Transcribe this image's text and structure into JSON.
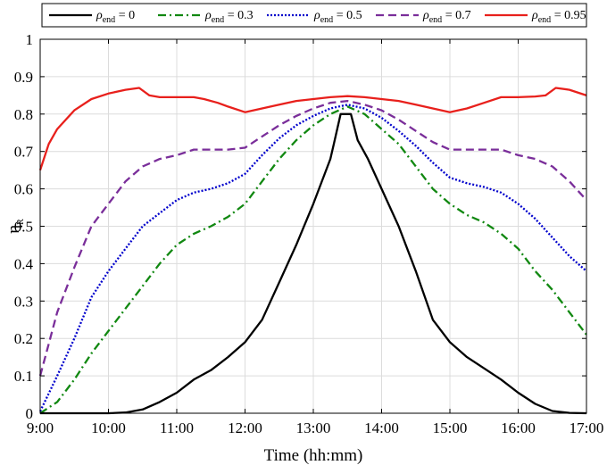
{
  "chart_data": {
    "type": "line",
    "xlabel": "Time (hh:mm)",
    "ylabel": "η",
    "ylabel_sub": "R",
    "xlim": [
      9,
      17
    ],
    "ylim": [
      0,
      1
    ],
    "x_ticks": [
      {
        "value": 9,
        "label": "9:00"
      },
      {
        "value": 10,
        "label": "10:00"
      },
      {
        "value": 11,
        "label": "11:00"
      },
      {
        "value": 12,
        "label": "12:00"
      },
      {
        "value": 13,
        "label": "13:00"
      },
      {
        "value": 14,
        "label": "14:00"
      },
      {
        "value": 15,
        "label": "15:00"
      },
      {
        "value": 16,
        "label": "16:00"
      },
      {
        "value": 17,
        "label": "17:00"
      }
    ],
    "y_ticks": [
      {
        "value": 0,
        "label": "0"
      },
      {
        "value": 0.1,
        "label": "0.1"
      },
      {
        "value": 0.2,
        "label": "0.2"
      },
      {
        "value": 0.3,
        "label": "0.3"
      },
      {
        "value": 0.4,
        "label": "0.4"
      },
      {
        "value": 0.5,
        "label": "0.5"
      },
      {
        "value": 0.6,
        "label": "0.6"
      },
      {
        "value": 0.7,
        "label": "0.7"
      },
      {
        "value": 0.8,
        "label": "0.8"
      },
      {
        "value": 0.9,
        "label": "0.9"
      },
      {
        "value": 1,
        "label": "1"
      }
    ],
    "grid": true,
    "legend_position": "top",
    "series": [
      {
        "name_prefix": "ρ",
        "name_sub": "end",
        "name_suffix": " = 0",
        "color": "#000000",
        "style": "solid",
        "points": [
          [
            9,
            0
          ],
          [
            9.5,
            0
          ],
          [
            10,
            0
          ],
          [
            10.25,
            0.002
          ],
          [
            10.5,
            0.01
          ],
          [
            10.75,
            0.03
          ],
          [
            11,
            0.055
          ],
          [
            11.25,
            0.09
          ],
          [
            11.5,
            0.115
          ],
          [
            11.75,
            0.15
          ],
          [
            12,
            0.19
          ],
          [
            12.25,
            0.25
          ],
          [
            12.5,
            0.35
          ],
          [
            12.75,
            0.45
          ],
          [
            13,
            0.56
          ],
          [
            13.25,
            0.68
          ],
          [
            13.3,
            0.72
          ],
          [
            13.4,
            0.8
          ],
          [
            13.55,
            0.8
          ],
          [
            13.65,
            0.73
          ],
          [
            13.8,
            0.68
          ],
          [
            14,
            0.6
          ],
          [
            14.25,
            0.5
          ],
          [
            14.5,
            0.38
          ],
          [
            14.75,
            0.25
          ],
          [
            15,
            0.19
          ],
          [
            15.25,
            0.15
          ],
          [
            15.5,
            0.12
          ],
          [
            15.75,
            0.09
          ],
          [
            16,
            0.055
          ],
          [
            16.25,
            0.025
          ],
          [
            16.5,
            0.006
          ],
          [
            16.75,
            0.001
          ],
          [
            17,
            0
          ]
        ]
      },
      {
        "name_prefix": "ρ",
        "name_sub": "end",
        "name_suffix": " = 0.3",
        "color": "#118811",
        "style": "dashdot",
        "points": [
          [
            9,
            0
          ],
          [
            9.25,
            0.03
          ],
          [
            9.5,
            0.09
          ],
          [
            9.75,
            0.16
          ],
          [
            10,
            0.22
          ],
          [
            10.25,
            0.28
          ],
          [
            10.5,
            0.34
          ],
          [
            10.75,
            0.4
          ],
          [
            11,
            0.45
          ],
          [
            11.25,
            0.48
          ],
          [
            11.5,
            0.5
          ],
          [
            11.75,
            0.525
          ],
          [
            12,
            0.56
          ],
          [
            12.25,
            0.62
          ],
          [
            12.5,
            0.68
          ],
          [
            12.75,
            0.73
          ],
          [
            13,
            0.77
          ],
          [
            13.25,
            0.8
          ],
          [
            13.5,
            0.82
          ],
          [
            13.75,
            0.8
          ],
          [
            14,
            0.76
          ],
          [
            14.25,
            0.72
          ],
          [
            14.5,
            0.66
          ],
          [
            14.75,
            0.6
          ],
          [
            15,
            0.56
          ],
          [
            15.25,
            0.53
          ],
          [
            15.5,
            0.51
          ],
          [
            15.75,
            0.48
          ],
          [
            16,
            0.44
          ],
          [
            16.25,
            0.38
          ],
          [
            16.5,
            0.33
          ],
          [
            16.75,
            0.27
          ],
          [
            17,
            0.21
          ]
        ]
      },
      {
        "name_prefix": "ρ",
        "name_sub": "end",
        "name_suffix": " = 0.5",
        "color": "#0000cc",
        "style": "dotted",
        "points": [
          [
            9,
            0.005
          ],
          [
            9.25,
            0.1
          ],
          [
            9.5,
            0.2
          ],
          [
            9.75,
            0.31
          ],
          [
            10,
            0.38
          ],
          [
            10.25,
            0.44
          ],
          [
            10.5,
            0.5
          ],
          [
            10.75,
            0.535
          ],
          [
            11,
            0.57
          ],
          [
            11.25,
            0.59
          ],
          [
            11.5,
            0.6
          ],
          [
            11.75,
            0.615
          ],
          [
            12,
            0.64
          ],
          [
            12.25,
            0.69
          ],
          [
            12.5,
            0.735
          ],
          [
            12.75,
            0.77
          ],
          [
            13,
            0.795
          ],
          [
            13.25,
            0.815
          ],
          [
            13.5,
            0.825
          ],
          [
            13.75,
            0.815
          ],
          [
            14,
            0.79
          ],
          [
            14.25,
            0.755
          ],
          [
            14.5,
            0.715
          ],
          [
            14.75,
            0.67
          ],
          [
            15,
            0.63
          ],
          [
            15.25,
            0.615
          ],
          [
            15.5,
            0.605
          ],
          [
            15.75,
            0.59
          ],
          [
            16,
            0.56
          ],
          [
            16.25,
            0.52
          ],
          [
            16.5,
            0.47
          ],
          [
            16.75,
            0.42
          ],
          [
            17,
            0.38
          ]
        ]
      },
      {
        "name_prefix": "ρ",
        "name_sub": "end",
        "name_suffix": " = 0.7",
        "color": "#7a2e9a",
        "style": "dashed",
        "points": [
          [
            9,
            0.1
          ],
          [
            9.25,
            0.27
          ],
          [
            9.5,
            0.39
          ],
          [
            9.75,
            0.5
          ],
          [
            10,
            0.56
          ],
          [
            10.25,
            0.62
          ],
          [
            10.5,
            0.66
          ],
          [
            10.75,
            0.68
          ],
          [
            11,
            0.69
          ],
          [
            11.25,
            0.705
          ],
          [
            11.5,
            0.705
          ],
          [
            11.75,
            0.705
          ],
          [
            12,
            0.71
          ],
          [
            12.25,
            0.74
          ],
          [
            12.5,
            0.77
          ],
          [
            12.75,
            0.795
          ],
          [
            13,
            0.815
          ],
          [
            13.25,
            0.83
          ],
          [
            13.5,
            0.835
          ],
          [
            13.75,
            0.825
          ],
          [
            14,
            0.81
          ],
          [
            14.25,
            0.785
          ],
          [
            14.5,
            0.755
          ],
          [
            14.75,
            0.725
          ],
          [
            15,
            0.705
          ],
          [
            15.25,
            0.705
          ],
          [
            15.5,
            0.705
          ],
          [
            15.75,
            0.705
          ],
          [
            16,
            0.69
          ],
          [
            16.25,
            0.68
          ],
          [
            16.5,
            0.66
          ],
          [
            16.75,
            0.62
          ],
          [
            17,
            0.57
          ]
        ]
      },
      {
        "name_prefix": "ρ",
        "name_sub": "end",
        "name_suffix": " = 0.95",
        "color": "#e8201c",
        "style": "solid",
        "points": [
          [
            9,
            0.65
          ],
          [
            9.125,
            0.72
          ],
          [
            9.25,
            0.76
          ],
          [
            9.5,
            0.81
          ],
          [
            9.75,
            0.84
          ],
          [
            10,
            0.855
          ],
          [
            10.25,
            0.865
          ],
          [
            10.45,
            0.87
          ],
          [
            10.6,
            0.85
          ],
          [
            10.75,
            0.845
          ],
          [
            11,
            0.845
          ],
          [
            11.25,
            0.845
          ],
          [
            11.4,
            0.84
          ],
          [
            11.6,
            0.83
          ],
          [
            11.75,
            0.82
          ],
          [
            12,
            0.805
          ],
          [
            12.25,
            0.815
          ],
          [
            12.5,
            0.825
          ],
          [
            12.75,
            0.835
          ],
          [
            13,
            0.84
          ],
          [
            13.25,
            0.845
          ],
          [
            13.5,
            0.848
          ],
          [
            13.75,
            0.845
          ],
          [
            14,
            0.84
          ],
          [
            14.25,
            0.835
          ],
          [
            14.5,
            0.825
          ],
          [
            14.75,
            0.815
          ],
          [
            15,
            0.805
          ],
          [
            15.25,
            0.815
          ],
          [
            15.5,
            0.83
          ],
          [
            15.75,
            0.845
          ],
          [
            16,
            0.845
          ],
          [
            16.25,
            0.847
          ],
          [
            16.4,
            0.85
          ],
          [
            16.55,
            0.87
          ],
          [
            16.75,
            0.865
          ],
          [
            17,
            0.85
          ]
        ]
      }
    ]
  }
}
